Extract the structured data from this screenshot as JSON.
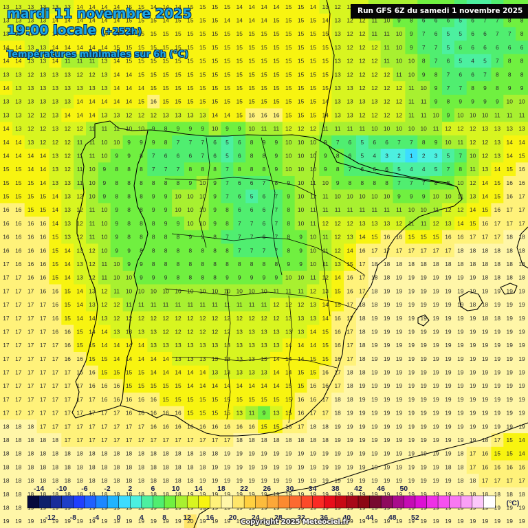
{
  "header": {
    "date_line": "mardi 11 novembre 2025",
    "time_line": "19:00 locale",
    "lead_time": "(+252h)",
    "parameter": "Températures minimales sur 6h (°C)",
    "run_info": "Run GFS 6Z du samedi 1 novembre 2025"
  },
  "legend": {
    "top_labels": [
      "-14",
      "-10",
      "-6",
      "-2",
      "2",
      "6",
      "10",
      "14",
      "18",
      "22",
      "26",
      "30",
      "34",
      "38",
      "42",
      "46",
      "50"
    ],
    "bottom_labels": [
      "-12",
      "-8",
      "-4",
      "0",
      "4",
      "8",
      "12",
      "16",
      "20",
      "24",
      "28",
      "32",
      "36",
      "40",
      "44",
      "48",
      "52"
    ],
    "unit": "(°C)",
    "colors": [
      "#050a3c",
      "#0d1f6b",
      "#1a2d9a",
      "#1f3fc8",
      "#2040ff",
      "#2060ff",
      "#1c88ff",
      "#20b4ff",
      "#3ddcff",
      "#4cf0e0",
      "#4cf0a0",
      "#50ee70",
      "#70f040",
      "#a8f030",
      "#d8f520",
      "#f8f410",
      "#fff27a",
      "#fff6a8",
      "#ffe66a",
      "#ffd040",
      "#fcbc3c",
      "#fca838",
      "#fc8a30",
      "#fc6a30",
      "#fc4a2a",
      "#fa2a24",
      "#e80e1a",
      "#c80a14",
      "#a80818",
      "#8c0814",
      "#780a30",
      "#8e0a5e",
      "#a80c8c",
      "#c40cb4",
      "#dc10d4",
      "#ee30e6",
      "#f650f0",
      "#f878f2",
      "#faa0f6",
      "#fcc8fa",
      "#ffffff"
    ]
  },
  "copyright": "Copyright 2025 Meteociel.fr",
  "grid": {
    "rows": [
      "13 13 13 13 13 13 14 14 14 14 15 15 14 14 14 15 15 15 15 14 14 14 14 15 15 14 13 12 12 12 11 10 10 10 9 8 8 6 5 4 7 8 8",
      "13 13 13 13 14 14 14 14 14 14 15 15 15 14 15 15 15 15 14 14 14 14 15 15 15 15 14 13 12 12 11 10 9 8 6 6 6 5 6 7 7 8 8",
      "13 13 13 13 14 14 14 14 14 14 14 15 15 15 15 15 15 15 15 15 15 15 15 15 15 15 15 13 12 12 11 11 10 9 7 6 5 5 6 6 7 7 8",
      "14 14 13 13 14 14 14 14 14 15 15 15 15 15 15 15 15 15 15 15 15 15 15 15 15 15 15 13 12 12 12 11 10 9 7 7 5 6 6 6 6 6 6",
      "14 14 13 13 14 11 11 11 13 14 15 15 15 15 15 15 15 15 15 15 15 15 15 15 15 15 15 13 12 12 12 11 10 10 8 7 6 5 4 5 7 8 8",
      "13 13 12 13 13 13 12 12 13 14 14 15 15 15 15 15 15 15 15 15 15 15 15 15 15 15 15 13 12 12 12 12 11 10 9 8 7 6 6 7 8 8 8",
      "14 13 13 13 13 13 13 13 13 14 14 14 15 15 15 15 15 15 15 15 15 15 15 15 15 15 15 13 13 12 12 12 12 11 10 9 7 7 8 9 8 9 9",
      "13 13 13 13 13 13 14 14 14 14 14 15 16 15 15 15 15 15 15 15 15 15 15 15 15 15 14 13 13 13 13 12 12 11 11 9 8 9 9 9 9 10 10",
      "13 13 12 12 13 14 14 14 13 13 12 12 12 13 13 13 13 14 14 15 16 16 16 15 15 15 14 13 13 12 12 12 12 11 11 10 9 10 10 10 11 11 11",
      "14 13 12 12 13 12 12 11 11 11 10 10 9 8 9 9 9 10 9 9 10 11 11 12 12 12 11 11 11 11 10 10 10 10 10 11 12 12 12 13 13 13 13",
      "14 14 13 12 12 12 11 11 10 10 9 9 9 8 7 7 7 6 5 6 8 9 9 10 10 10 9 7 6 5 6 6 7 7 8 9 10 11 12 12 13 14 14",
      "14 14 14 14 13 12 11 11 10 9 9 8 7 6 6 6 7 6 5 6 8 8 9 10 10 10 9 8 6 5 4 3 2 1 2 3 5 7 10 12 13 14 15",
      "15 15 14 14 13 12 11 10 9 8 8 8 7 7 7 8 8 8 7 8 8 8 9 10 10 10 9 8 7 6 6 6 5 4 4 5 7 8 11 13 14 15 16",
      "15 15 15 14 13 13 11 10 9 8 8 8 8 8 8 9 10 9 7 6 6 7 8 9 10 11 10 9 8 8 8 8 7 7 7 8 8 10 12 14 15 16 16",
      "15 15 15 15 14 13 12 10 9 8 8 8 9 9 10 10 10 9 7 6 5 6 7 9 10 11 11 10 10 10 10 10 9 9 9 10 10 11 13 14 15 16 17",
      "16 16 15 15 14 13 12 11 10 9 8 8 9 9 10 10 10 9 8 6 6 6 7 8 10 11 11 11 11 11 11 11 11 10 10 11 12 12 14 15 16 17 17",
      "16 16 16 16 14 13 12 11 10 9 8 8 8 9 9 10 10 9 8 7 7 6 7 8 10 11 12 12 12 13 13 13 12 11 11 12 13 14 15 16 17 17 17",
      "16 16 16 16 15 13 12 11 10 9 8 8 8 8 8 9 9 8 7 7 7 6 7 8 9 10 11 12 13 14 15 16 16 15 15 15 16 16 17 17 17 18 18",
      "16 16 16 16 15 14 13 12 10 9 9 8 8 8 8 8 8 8 8 7 7 7 7 8 9 10 11 12 14 16 17 17 17 17 17 17 17 18 18 18 18 18 18",
      "17 16 16 16 15 14 13 12 11 10 9 9 8 8 8 8 8 8 8 8 8 8 8 9 9 10 11 13 15 17 18 18 18 18 18 18 18 18 18 18 18 18 18",
      "17 17 16 16 15 14 13 12 11 10 10 9 9 9 8 8 8 8 9 9 9 9 9 10 10 11 12 14 16 17 18 18 19 19 19 19 19 19 19 18 18 18 18",
      "17 17 17 16 16 15 14 13 12 11 10 10 10 10 10 10 10 10 10 10 10 10 11 11 11 12 13 15 16 17 18 19 19 19 19 19 19 19 19 19 19 19 19",
      "17 17 17 17 16 15 14 13 12 12 11 11 11 11 11 11 11 11 11 11 11 11 12 12 12 13 14 15 17 18 18 19 19 19 19 19 19 19 18 18 19 19 19",
      "17 17 17 17 16 15 14 14 13 12 12 12 12 12 12 12 12 12 12 12 12 12 12 13 13 13 14 16 17 18 19 19 19 19 19 19 19 19 19 18 18 19 19",
      "17 17 17 17 16 16 15 14 14 13 13 13 13 12 12 12 12 12 12 13 13 13 13 13 13 14 15 16 17 18 19 19 19 19 19 19 19 19 19 19 19 19 19",
      "17 17 17 17 17 16 15 15 14 14 14 14 13 13 13 13 13 13 13 13 13 13 13 14 14 14 15 16 17 18 19 19 19 19 19 19 19 19 19 19 19 19 19",
      "17 17 17 17 17 16 16 15 15 14 14 14 14 14 13 13 13 13 13 13 13 13 14 14 14 15 15 16 17 18 19 19 19 19 19 19 19 19 19 19 19 19 19",
      "17 17 17 17 17 17 16 16 15 15 15 15 14 14 14 14 14 13 13 13 13 13 14 14 15 15 16 17 18 18 19 19 19 19 19 19 19 19 19 19 19 19 19",
      "17 17 17 17 17 17 17 16 16 16 15 15 15 15 15 14 14 14 14 14 14 14 14 15 15 16 16 17 18 19 19 19 19 19 19 19 19 19 19 19 19 19 19",
      "17 17 17 17 17 17 17 17 16 16 16 16 16 15 15 15 15 15 15 15 15 15 15 15 16 16 17 18 18 19 19 19 19 19 19 19 19 19 19 19 19 19 19",
      "17 17 17 17 17 17 17 17 17 17 16 16 16 16 16 15 15 15 15 13 11 9 13 15 16 17 17 18 19 19 19 19 19 19 19 19 19 19 19 19 19 19 19",
      "18 18 18 17 17 17 17 17 17 17 17 17 16 16 16 16 16 16 16 16 16 15 15 16 17 18 18 19 19 19 19 19 19 19 19 19 19 19 19 19 19 19 19",
      "18 18 18 18 18 17 17 17 17 17 17 17 17 17 17 17 17 17 17 18 18 18 18 18 18 18 18 19 19 19 19 19 19 19 19 19 19 19 19 18 17 15 14",
      "18 18 18 18 18 18 18 18 18 18 18 18 18 18 18 18 18 18 19 19 19 19 19 19 19 19 19 19 19 19 19 19 19 19 19 19 19 18 17 16 15 15 14",
      "18 18 18 18 18 18 18 18 18 18 18 18 18 18 18 18 18 19 19 19 19 19 19 19 19 19 19 19 19 19 19 19 19 19 19 19 18 18 17 16 16 16 16",
      "18 18 18 18 18 18 18 18 18 18 18 18 18 18 18 18 19 19 19 19 19 19 19 19 19 19 19 19 19 19 19 19 19 19 19 19 19 18 18 17 17 17 17",
      "18 18 18 18 18 18 18 18 18 18 18 18 18 18 18 19 19 19 19 19 19 19 19 19 19 19 19 19 19 19 19 19 19 19 19 19 19 19 18 18 18 18 18",
      "18 18 19 19 19 19 19 19 19 19 19 19 19 19 19 19 19 19 19 19 19 19 19 19 19 19 19 19 19 19 19 19 19 19 19 19 19 19 19 19 19 19 19",
      "19 19 19 19 19 19 19 19 19 19 19 19 19 19 19 20 19 19 19 19 19 19 19 19 19 19 19 19 19 19 19 19 19 19 19 19 19 19 19 19 19 19 19"
    ]
  }
}
